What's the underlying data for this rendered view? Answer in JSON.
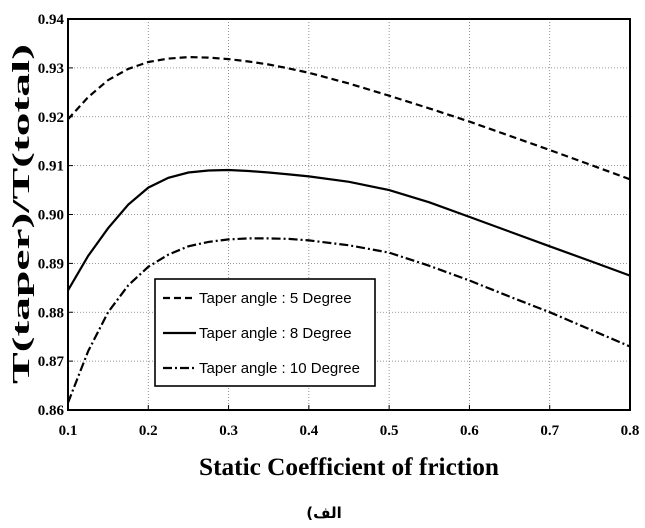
{
  "chart_data": {
    "type": "line",
    "xlabel": "Static Coefficient of friction",
    "ylabel": "T(taper)/T(total)",
    "caption": "الف)",
    "xlim": [
      0.1,
      0.8
    ],
    "ylim": [
      0.86,
      0.94
    ],
    "xticks": [
      "0.1",
      "0.2",
      "0.3",
      "0.4",
      "0.5",
      "0.6",
      "0.7",
      "0.8"
    ],
    "yticks": [
      "0.86",
      "0.87",
      "0.88",
      "0.89",
      "0.90",
      "0.91",
      "0.92",
      "0.93",
      "0.94"
    ],
    "grid": true,
    "legend_position": "lower-left",
    "x": [
      0.1,
      0.125,
      0.15,
      0.175,
      0.2,
      0.225,
      0.25,
      0.275,
      0.3,
      0.325,
      0.35,
      0.375,
      0.4,
      0.45,
      0.5,
      0.55,
      0.6,
      0.65,
      0.7,
      0.75,
      0.8
    ],
    "series": [
      {
        "name": "Taper angle : 5 Degree",
        "line_style": "dashed",
        "values": [
          0.9195,
          0.924,
          0.9275,
          0.9298,
          0.9312,
          0.9319,
          0.9322,
          0.9321,
          0.9318,
          0.9313,
          0.9307,
          0.9299,
          0.929,
          0.9268,
          0.9243,
          0.9217,
          0.919,
          0.9161,
          0.9132,
          0.9102,
          0.9072
        ]
      },
      {
        "name": "Taper angle : 8 Degree",
        "line_style": "solid",
        "values": [
          0.8845,
          0.8915,
          0.8972,
          0.902,
          0.9055,
          0.9075,
          0.9086,
          0.909,
          0.9091,
          0.9089,
          0.9086,
          0.9082,
          0.9078,
          0.9067,
          0.905,
          0.9025,
          0.8995,
          0.8965,
          0.8935,
          0.8905,
          0.8875
        ]
      },
      {
        "name": "Taper angle : 10 Degree",
        "line_style": "dash-dot",
        "values": [
          0.8615,
          0.872,
          0.88,
          0.8855,
          0.8893,
          0.8918,
          0.8935,
          0.8944,
          0.8949,
          0.8951,
          0.8951,
          0.895,
          0.8947,
          0.8937,
          0.8922,
          0.8895,
          0.8865,
          0.8832,
          0.88,
          0.8765,
          0.873
        ]
      }
    ]
  },
  "colors": {
    "line": "#000000",
    "grid": "#777777",
    "background": "#ffffff"
  }
}
